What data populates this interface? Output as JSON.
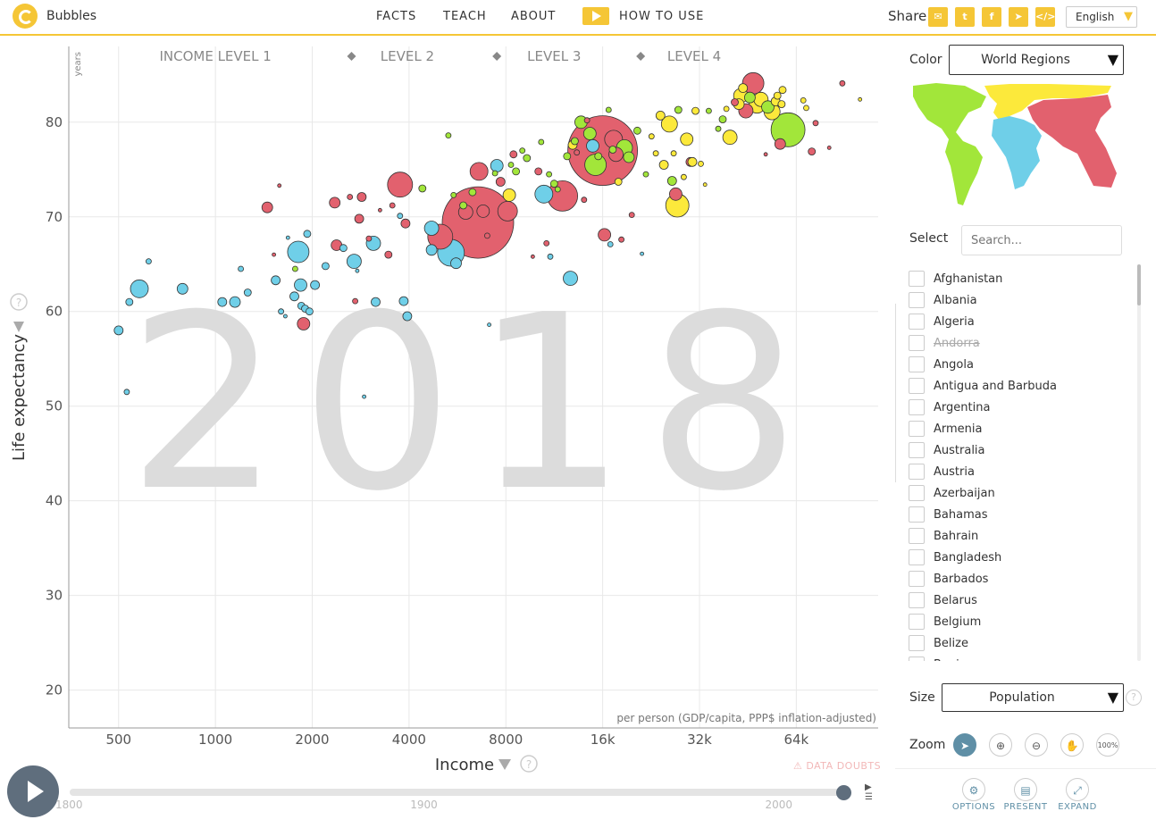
{
  "header": {
    "brand": "Bubbles",
    "nav": {
      "facts": "FACTS",
      "teach": "TEACH",
      "about": "ABOUT",
      "howto": "HOW TO USE"
    },
    "share_label": "Share",
    "language": "English"
  },
  "sidebar": {
    "color_label": "Color",
    "color_value": "World Regions",
    "select_label": "Select",
    "search_placeholder": "Search...",
    "countries": [
      {
        "name": "Afghanistan",
        "disabled": false
      },
      {
        "name": "Albania",
        "disabled": false
      },
      {
        "name": "Algeria",
        "disabled": false
      },
      {
        "name": "Andorra",
        "disabled": true
      },
      {
        "name": "Angola",
        "disabled": false
      },
      {
        "name": "Antigua and Barbuda",
        "disabled": false
      },
      {
        "name": "Argentina",
        "disabled": false
      },
      {
        "name": "Armenia",
        "disabled": false
      },
      {
        "name": "Australia",
        "disabled": false
      },
      {
        "name": "Austria",
        "disabled": false
      },
      {
        "name": "Azerbaijan",
        "disabled": false
      },
      {
        "name": "Bahamas",
        "disabled": false
      },
      {
        "name": "Bahrain",
        "disabled": false
      },
      {
        "name": "Bangladesh",
        "disabled": false
      },
      {
        "name": "Barbados",
        "disabled": false
      },
      {
        "name": "Belarus",
        "disabled": false
      },
      {
        "name": "Belgium",
        "disabled": false
      },
      {
        "name": "Belize",
        "disabled": false
      },
      {
        "name": "Benin",
        "disabled": false
      }
    ],
    "size_label": "Size",
    "size_value": "Population",
    "zoom_label": "Zoom",
    "zoom_pct": "100%",
    "buttons": {
      "options": "OPTIONS",
      "present": "PRESENT",
      "expand": "EXPAND"
    }
  },
  "timeline": {
    "ticks": [
      "1800",
      "1900",
      "2000"
    ],
    "start": 1800,
    "end": 2018,
    "current": 2018
  },
  "colors": {
    "accent": "#f5c636",
    "asia": "#e2616e",
    "africa": "#6fcfe8",
    "americas": "#a2e63a",
    "europe": "#fce93b",
    "control": "#5f6e7d"
  },
  "chart_data": {
    "type": "scatter",
    "year": "2018",
    "xlabel": "Income",
    "x_unit": "per person (GDP/capita, PPP$ inflation-adjusted)",
    "ylabel": "Life expectancy",
    "y_unit": "years",
    "x_scale": "log",
    "xlim": [
      350,
      115000
    ],
    "ylim": [
      16,
      88
    ],
    "x_ticks": [
      {
        "v": 500,
        "label": "500"
      },
      {
        "v": 1000,
        "label": "1000"
      },
      {
        "v": 2000,
        "label": "2000"
      },
      {
        "v": 4000,
        "label": "4000"
      },
      {
        "v": 8000,
        "label": "8000"
      },
      {
        "v": 16000,
        "label": "16k"
      },
      {
        "v": 32000,
        "label": "32k"
      },
      {
        "v": 64000,
        "label": "64k"
      }
    ],
    "y_ticks": [
      20,
      30,
      40,
      50,
      60,
      70,
      80
    ],
    "income_levels": {
      "labels": [
        "INCOME LEVEL 1",
        "LEVEL 2",
        "LEVEL 3",
        "LEVEL 4"
      ],
      "centers": [
        1000,
        3950,
        11300,
        30800
      ],
      "dividers": [
        2650,
        7500,
        21000
      ]
    },
    "warning": "DATA DOUBTS",
    "regions": [
      "africa",
      "asia",
      "americas",
      "europe"
    ],
    "points": [
      {
        "x": 500,
        "y": 58,
        "r": 5,
        "region": "africa"
      },
      {
        "x": 530,
        "y": 51.5,
        "r": 3,
        "region": "africa"
      },
      {
        "x": 540,
        "y": 61,
        "r": 4,
        "region": "africa"
      },
      {
        "x": 580,
        "y": 62.4,
        "r": 10,
        "region": "africa"
      },
      {
        "x": 620,
        "y": 65.3,
        "r": 3,
        "region": "africa"
      },
      {
        "x": 790,
        "y": 62.4,
        "r": 6,
        "region": "africa"
      },
      {
        "x": 1050,
        "y": 61,
        "r": 5,
        "region": "africa"
      },
      {
        "x": 1150,
        "y": 61,
        "r": 6,
        "region": "africa"
      },
      {
        "x": 1200,
        "y": 64.5,
        "r": 3,
        "region": "africa"
      },
      {
        "x": 1260,
        "y": 62,
        "r": 4,
        "region": "africa"
      },
      {
        "x": 1450,
        "y": 71,
        "r": 6,
        "region": "asia"
      },
      {
        "x": 1540,
        "y": 63.3,
        "r": 5,
        "region": "africa"
      },
      {
        "x": 1520,
        "y": 66,
        "r": 2,
        "region": "asia"
      },
      {
        "x": 1580,
        "y": 73.3,
        "r": 2,
        "region": "asia"
      },
      {
        "x": 1600,
        "y": 60,
        "r": 3,
        "region": "africa"
      },
      {
        "x": 1650,
        "y": 59.5,
        "r": 2,
        "region": "africa"
      },
      {
        "x": 1680,
        "y": 67.8,
        "r": 2,
        "region": "africa"
      },
      {
        "x": 1760,
        "y": 61.6,
        "r": 5,
        "region": "africa"
      },
      {
        "x": 1770,
        "y": 64.5,
        "r": 3,
        "region": "americas"
      },
      {
        "x": 1810,
        "y": 66.3,
        "r": 12,
        "region": "africa"
      },
      {
        "x": 1840,
        "y": 62.8,
        "r": 7,
        "region": "africa"
      },
      {
        "x": 1850,
        "y": 60.6,
        "r": 4,
        "region": "africa"
      },
      {
        "x": 1880,
        "y": 58.7,
        "r": 7,
        "region": "asia"
      },
      {
        "x": 1900,
        "y": 60.3,
        "r": 4,
        "region": "africa"
      },
      {
        "x": 1930,
        "y": 68.2,
        "r": 4,
        "region": "africa"
      },
      {
        "x": 1960,
        "y": 60,
        "r": 4,
        "region": "africa"
      },
      {
        "x": 2040,
        "y": 62.8,
        "r": 5,
        "region": "africa"
      },
      {
        "x": 2200,
        "y": 64.8,
        "r": 4,
        "region": "africa"
      },
      {
        "x": 2350,
        "y": 71.5,
        "r": 6,
        "region": "asia"
      },
      {
        "x": 2380,
        "y": 67,
        "r": 6,
        "region": "asia"
      },
      {
        "x": 2500,
        "y": 66.7,
        "r": 4,
        "region": "africa"
      },
      {
        "x": 2620,
        "y": 72.1,
        "r": 3,
        "region": "asia"
      },
      {
        "x": 2700,
        "y": 65.3,
        "r": 8,
        "region": "africa"
      },
      {
        "x": 2720,
        "y": 61.1,
        "r": 3,
        "region": "asia"
      },
      {
        "x": 2760,
        "y": 64.3,
        "r": 2,
        "region": "africa"
      },
      {
        "x": 2800,
        "y": 69.8,
        "r": 5,
        "region": "asia"
      },
      {
        "x": 2850,
        "y": 72.1,
        "r": 5,
        "region": "asia"
      },
      {
        "x": 2900,
        "y": 51,
        "r": 2,
        "region": "africa"
      },
      {
        "x": 3000,
        "y": 67.7,
        "r": 3,
        "region": "asia"
      },
      {
        "x": 3100,
        "y": 67.2,
        "r": 8,
        "region": "africa"
      },
      {
        "x": 3150,
        "y": 61,
        "r": 5,
        "region": "africa"
      },
      {
        "x": 3250,
        "y": 70.7,
        "r": 2,
        "region": "asia"
      },
      {
        "x": 3450,
        "y": 66,
        "r": 4,
        "region": "asia"
      },
      {
        "x": 3550,
        "y": 71.2,
        "r": 3,
        "region": "asia"
      },
      {
        "x": 3750,
        "y": 73.4,
        "r": 14,
        "region": "asia"
      },
      {
        "x": 3750,
        "y": 70.1,
        "r": 3,
        "region": "africa"
      },
      {
        "x": 3850,
        "y": 61.1,
        "r": 5,
        "region": "africa"
      },
      {
        "x": 3900,
        "y": 69.3,
        "r": 5,
        "region": "asia"
      },
      {
        "x": 3950,
        "y": 59.5,
        "r": 5,
        "region": "africa"
      },
      {
        "x": 4400,
        "y": 73,
        "r": 4,
        "region": "americas"
      },
      {
        "x": 4700,
        "y": 66.5,
        "r": 6,
        "region": "africa"
      },
      {
        "x": 4700,
        "y": 68.8,
        "r": 8,
        "region": "africa"
      },
      {
        "x": 5000,
        "y": 67.9,
        "r": 14,
        "region": "asia"
      },
      {
        "x": 5400,
        "y": 66.2,
        "r": 15,
        "region": "africa"
      },
      {
        "x": 5500,
        "y": 72.3,
        "r": 3,
        "region": "americas"
      },
      {
        "x": 5600,
        "y": 65.1,
        "r": 6,
        "region": "africa"
      },
      {
        "x": 5300,
        "y": 78.6,
        "r": 3,
        "region": "americas"
      },
      {
        "x": 5900,
        "y": 71.2,
        "r": 4,
        "region": "americas"
      },
      {
        "x": 6000,
        "y": 70.5,
        "r": 8,
        "region": "asia"
      },
      {
        "x": 6300,
        "y": 72.6,
        "r": 4,
        "region": "americas"
      },
      {
        "x": 6550,
        "y": 69.4,
        "r": 40,
        "region": "asia"
      },
      {
        "x": 6600,
        "y": 74.8,
        "r": 10,
        "region": "asia"
      },
      {
        "x": 6800,
        "y": 70.6,
        "r": 7,
        "region": "asia"
      },
      {
        "x": 7000,
        "y": 68,
        "r": 3,
        "region": "asia"
      },
      {
        "x": 7100,
        "y": 58.6,
        "r": 2,
        "region": "africa"
      },
      {
        "x": 7400,
        "y": 74.6,
        "r": 3,
        "region": "americas"
      },
      {
        "x": 7500,
        "y": 75.4,
        "r": 7,
        "region": "africa"
      },
      {
        "x": 7700,
        "y": 73.7,
        "r": 5,
        "region": "asia"
      },
      {
        "x": 8100,
        "y": 70.6,
        "r": 11,
        "region": "asia"
      },
      {
        "x": 8200,
        "y": 72.3,
        "r": 7,
        "region": "europe"
      },
      {
        "x": 8300,
        "y": 75.5,
        "r": 3,
        "region": "americas"
      },
      {
        "x": 8450,
        "y": 76.6,
        "r": 4,
        "region": "asia"
      },
      {
        "x": 8600,
        "y": 74.8,
        "r": 4,
        "region": "americas"
      },
      {
        "x": 9000,
        "y": 77,
        "r": 3,
        "region": "americas"
      },
      {
        "x": 9300,
        "y": 76.2,
        "r": 4,
        "region": "americas"
      },
      {
        "x": 9700,
        "y": 65.8,
        "r": 2,
        "region": "asia"
      },
      {
        "x": 10100,
        "y": 74.8,
        "r": 4,
        "region": "asia"
      },
      {
        "x": 10300,
        "y": 77.9,
        "r": 3,
        "region": "americas"
      },
      {
        "x": 10500,
        "y": 72.4,
        "r": 10,
        "region": "africa"
      },
      {
        "x": 10700,
        "y": 67.2,
        "r": 3,
        "region": "asia"
      },
      {
        "x": 10900,
        "y": 74.5,
        "r": 3,
        "region": "americas"
      },
      {
        "x": 11000,
        "y": 65.8,
        "r": 3,
        "region": "africa"
      },
      {
        "x": 11300,
        "y": 73.5,
        "r": 4,
        "region": "americas"
      },
      {
        "x": 11600,
        "y": 72.9,
        "r": 3,
        "region": "americas"
      },
      {
        "x": 12000,
        "y": 72.2,
        "r": 17,
        "region": "asia"
      },
      {
        "x": 12400,
        "y": 76.4,
        "r": 4,
        "region": "americas"
      },
      {
        "x": 12700,
        "y": 63.5,
        "r": 8,
        "region": "africa"
      },
      {
        "x": 12900,
        "y": 77.6,
        "r": 5,
        "region": "europe"
      },
      {
        "x": 13100,
        "y": 78,
        "r": 4,
        "region": "americas"
      },
      {
        "x": 13300,
        "y": 76.8,
        "r": 3,
        "region": "asia"
      },
      {
        "x": 13700,
        "y": 80,
        "r": 7,
        "region": "americas"
      },
      {
        "x": 14000,
        "y": 71.8,
        "r": 3,
        "region": "asia"
      },
      {
        "x": 14300,
        "y": 80.2,
        "r": 3,
        "region": "asia"
      },
      {
        "x": 14600,
        "y": 78.8,
        "r": 7,
        "region": "americas"
      },
      {
        "x": 14900,
        "y": 77.5,
        "r": 7,
        "region": "africa"
      },
      {
        "x": 15200,
        "y": 75.5,
        "r": 12,
        "region": "americas"
      },
      {
        "x": 15500,
        "y": 76.4,
        "r": 4,
        "region": "americas"
      },
      {
        "x": 16000,
        "y": 77,
        "r": 39,
        "region": "asia"
      },
      {
        "x": 16200,
        "y": 68.1,
        "r": 7,
        "region": "asia"
      },
      {
        "x": 16700,
        "y": 81.3,
        "r": 3,
        "region": "americas"
      },
      {
        "x": 16900,
        "y": 67.1,
        "r": 3,
        "region": "africa"
      },
      {
        "x": 17200,
        "y": 77.1,
        "r": 4,
        "region": "americas"
      },
      {
        "x": 17300,
        "y": 78.2,
        "r": 10,
        "region": "asia"
      },
      {
        "x": 17600,
        "y": 76.6,
        "r": 8,
        "region": "asia"
      },
      {
        "x": 17900,
        "y": 73.7,
        "r": 4,
        "region": "europe"
      },
      {
        "x": 18300,
        "y": 67.6,
        "r": 3,
        "region": "asia"
      },
      {
        "x": 18700,
        "y": 77.3,
        "r": 9,
        "region": "americas"
      },
      {
        "x": 19300,
        "y": 76.3,
        "r": 6,
        "region": "americas"
      },
      {
        "x": 19700,
        "y": 70.2,
        "r": 3,
        "region": "asia"
      },
      {
        "x": 20500,
        "y": 79.1,
        "r": 4,
        "region": "americas"
      },
      {
        "x": 21200,
        "y": 66.1,
        "r": 2,
        "region": "africa"
      },
      {
        "x": 21800,
        "y": 74.5,
        "r": 3,
        "region": "americas"
      },
      {
        "x": 22700,
        "y": 78.5,
        "r": 3,
        "region": "europe"
      },
      {
        "x": 23400,
        "y": 76.7,
        "r": 3,
        "region": "europe"
      },
      {
        "x": 24200,
        "y": 80.7,
        "r": 5,
        "region": "europe"
      },
      {
        "x": 24800,
        "y": 75.5,
        "r": 5,
        "region": "europe"
      },
      {
        "x": 25800,
        "y": 79.8,
        "r": 9,
        "region": "europe"
      },
      {
        "x": 26300,
        "y": 73.8,
        "r": 5,
        "region": "americas"
      },
      {
        "x": 26600,
        "y": 76.7,
        "r": 3,
        "region": "europe"
      },
      {
        "x": 27000,
        "y": 72.4,
        "r": 7,
        "region": "asia"
      },
      {
        "x": 27500,
        "y": 81.3,
        "r": 4,
        "region": "americas"
      },
      {
        "x": 27300,
        "y": 71.2,
        "r": 13,
        "region": "europe"
      },
      {
        "x": 28600,
        "y": 74.2,
        "r": 3,
        "region": "europe"
      },
      {
        "x": 29200,
        "y": 78.2,
        "r": 7,
        "region": "europe"
      },
      {
        "x": 30000,
        "y": 75.8,
        "r": 5,
        "region": "asia"
      },
      {
        "x": 30400,
        "y": 75.8,
        "r": 5,
        "region": "europe"
      },
      {
        "x": 31100,
        "y": 81.2,
        "r": 4,
        "region": "europe"
      },
      {
        "x": 32300,
        "y": 75.6,
        "r": 3,
        "region": "europe"
      },
      {
        "x": 33300,
        "y": 73.4,
        "r": 2,
        "region": "europe"
      },
      {
        "x": 34200,
        "y": 81.2,
        "r": 3,
        "region": "americas"
      },
      {
        "x": 36600,
        "y": 79.3,
        "r": 3,
        "region": "americas"
      },
      {
        "x": 37800,
        "y": 80.3,
        "r": 4,
        "region": "americas"
      },
      {
        "x": 38800,
        "y": 81.4,
        "r": 3,
        "region": "europe"
      },
      {
        "x": 39800,
        "y": 78.4,
        "r": 8,
        "region": "europe"
      },
      {
        "x": 41200,
        "y": 82.1,
        "r": 4,
        "region": "asia"
      },
      {
        "x": 42400,
        "y": 81.9,
        "r": 6,
        "region": "europe"
      },
      {
        "x": 43000,
        "y": 82.8,
        "r": 8,
        "region": "europe"
      },
      {
        "x": 43700,
        "y": 83.6,
        "r": 5,
        "region": "europe"
      },
      {
        "x": 44600,
        "y": 81.2,
        "r": 8,
        "region": "asia"
      },
      {
        "x": 45900,
        "y": 82.6,
        "r": 6,
        "region": "americas"
      },
      {
        "x": 47000,
        "y": 84.1,
        "r": 12,
        "region": "asia"
      },
      {
        "x": 48300,
        "y": 81.8,
        "r": 9,
        "region": "europe"
      },
      {
        "x": 49700,
        "y": 82.4,
        "r": 8,
        "region": "europe"
      },
      {
        "x": 51400,
        "y": 76.6,
        "r": 2,
        "region": "asia"
      },
      {
        "x": 52200,
        "y": 81.6,
        "r": 7,
        "region": "americas"
      },
      {
        "x": 53800,
        "y": 81.1,
        "r": 9,
        "region": "europe"
      },
      {
        "x": 55200,
        "y": 82.2,
        "r": 5,
        "region": "europe"
      },
      {
        "x": 55900,
        "y": 82.8,
        "r": 4,
        "region": "europe"
      },
      {
        "x": 57600,
        "y": 81.9,
        "r": 4,
        "region": "europe"
      },
      {
        "x": 57000,
        "y": 77.7,
        "r": 6,
        "region": "asia"
      },
      {
        "x": 58000,
        "y": 83.4,
        "r": 4,
        "region": "europe"
      },
      {
        "x": 60300,
        "y": 79.2,
        "r": 19,
        "region": "americas"
      },
      {
        "x": 67300,
        "y": 82.3,
        "r": 3,
        "region": "europe"
      },
      {
        "x": 68700,
        "y": 81.5,
        "r": 3,
        "region": "europe"
      },
      {
        "x": 71500,
        "y": 76.9,
        "r": 4,
        "region": "asia"
      },
      {
        "x": 73500,
        "y": 79.9,
        "r": 3,
        "region": "asia"
      },
      {
        "x": 81000,
        "y": 77.3,
        "r": 2,
        "region": "asia"
      },
      {
        "x": 89000,
        "y": 84.1,
        "r": 3,
        "region": "asia"
      },
      {
        "x": 101000,
        "y": 82.4,
        "r": 2,
        "region": "europe"
      }
    ]
  }
}
